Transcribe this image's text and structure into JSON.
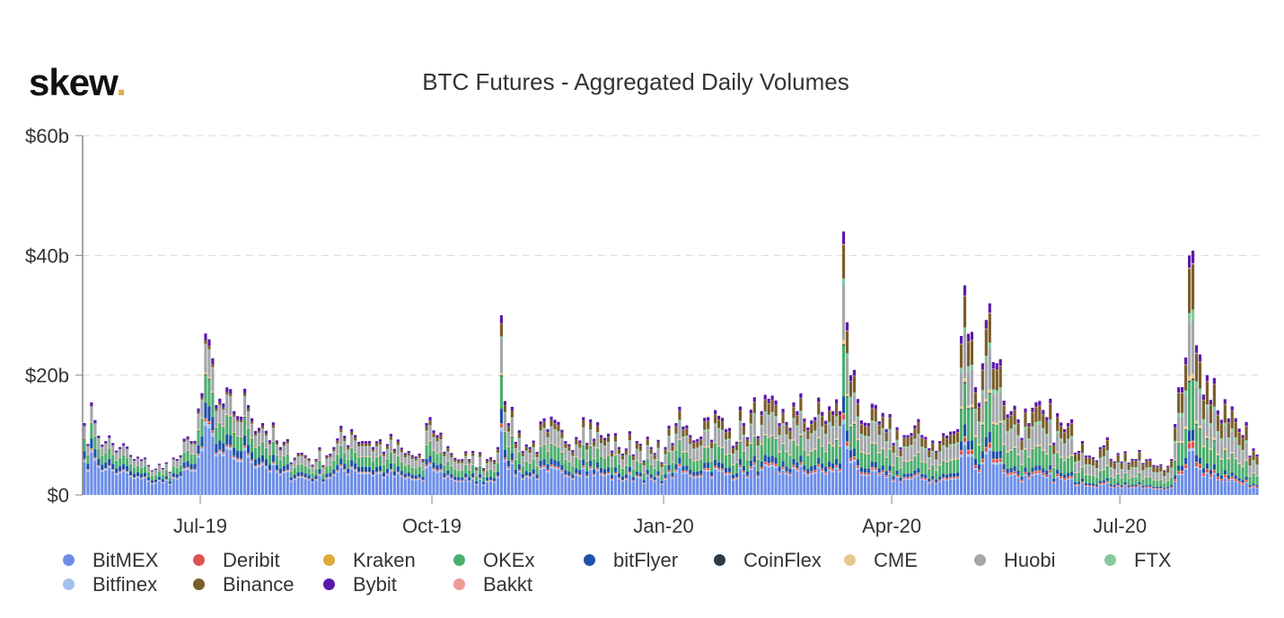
{
  "logo": {
    "text": "skew",
    "dot": "."
  },
  "chart_data": {
    "type": "bar",
    "stacked": true,
    "title": "BTC Futures - Aggregated Daily Volumes",
    "xlabel": "",
    "ylabel": "",
    "ylim": [
      0,
      60
    ],
    "y_ticks": [
      {
        "value": 0,
        "label": "$0"
      },
      {
        "value": 20,
        "label": "$20b"
      },
      {
        "value": 40,
        "label": "$40b"
      },
      {
        "value": 60,
        "label": "$60b"
      }
    ],
    "x_ticks": [
      {
        "index": 33,
        "label": "Jul-19"
      },
      {
        "index": 98,
        "label": "Oct-19"
      },
      {
        "index": 163,
        "label": "Jan-20"
      },
      {
        "index": 227,
        "label": "Apr-20"
      },
      {
        "index": 291,
        "label": "Jul-20"
      }
    ],
    "legend_placement": "bottom",
    "total_days": 330,
    "totals_anchor_points": [
      [
        0,
        12
      ],
      [
        3,
        12.5
      ],
      [
        6,
        9
      ],
      [
        10,
        8
      ],
      [
        14,
        6
      ],
      [
        18,
        5
      ],
      [
        22,
        4.5
      ],
      [
        26,
        6
      ],
      [
        30,
        9
      ],
      [
        33,
        17
      ],
      [
        35,
        26
      ],
      [
        37,
        15
      ],
      [
        42,
        14
      ],
      [
        46,
        15
      ],
      [
        50,
        12
      ],
      [
        55,
        8
      ],
      [
        60,
        7
      ],
      [
        65,
        6
      ],
      [
        70,
        8
      ],
      [
        75,
        11
      ],
      [
        80,
        9
      ],
      [
        85,
        8.5
      ],
      [
        90,
        7
      ],
      [
        95,
        6
      ],
      [
        97,
        13
      ],
      [
        99,
        10
      ],
      [
        103,
        7
      ],
      [
        108,
        6
      ],
      [
        113,
        6
      ],
      [
        116,
        8
      ],
      [
        117,
        30
      ],
      [
        119,
        12
      ],
      [
        125,
        8
      ],
      [
        130,
        11
      ],
      [
        135,
        9
      ],
      [
        140,
        13
      ],
      [
        145,
        10
      ],
      [
        150,
        8
      ],
      [
        155,
        9
      ],
      [
        160,
        7
      ],
      [
        163,
        8
      ],
      [
        166,
        12
      ],
      [
        170,
        10
      ],
      [
        175,
        13
      ],
      [
        180,
        11
      ],
      [
        185,
        12
      ],
      [
        190,
        14
      ],
      [
        195,
        12
      ],
      [
        200,
        14
      ],
      [
        205,
        13
      ],
      [
        210,
        14
      ],
      [
        212,
        14
      ],
      [
        213,
        44
      ],
      [
        215,
        20
      ],
      [
        220,
        12
      ],
      [
        225,
        11
      ],
      [
        230,
        10
      ],
      [
        235,
        10
      ],
      [
        240,
        9
      ],
      [
        245,
        11
      ],
      [
        247,
        35
      ],
      [
        250,
        18
      ],
      [
        254,
        32
      ],
      [
        256,
        22
      ],
      [
        260,
        14
      ],
      [
        265,
        12
      ],
      [
        270,
        13
      ],
      [
        275,
        11
      ],
      [
        280,
        9
      ],
      [
        285,
        8
      ],
      [
        290,
        7
      ],
      [
        295,
        6
      ],
      [
        300,
        5
      ],
      [
        305,
        6
      ],
      [
        308,
        18
      ],
      [
        310,
        40
      ],
      [
        312,
        25
      ],
      [
        315,
        20
      ],
      [
        320,
        16
      ],
      [
        325,
        10
      ],
      [
        330,
        7
      ]
    ],
    "series": [
      {
        "name": "BitMEX",
        "color": "#6c8ee8",
        "share_early": 0.44,
        "share_late": 0.16
      },
      {
        "name": "Deribit",
        "color": "#e05252",
        "share_early": 0.01,
        "share_late": 0.025
      },
      {
        "name": "Kraken",
        "color": "#e0a93a",
        "share_early": 0.005,
        "share_late": 0.005
      },
      {
        "name": "OKEx",
        "color": "#4caf6e",
        "share_early": 0.16,
        "share_late": 0.2
      },
      {
        "name": "bitFlyer",
        "color": "#1f4fa8",
        "share_early": 0.1,
        "share_late": 0.04
      },
      {
        "name": "CoinFlex",
        "color": "#2f3a44",
        "share_early": 0.005,
        "share_late": 0.005
      },
      {
        "name": "CME",
        "color": "#e7c98e",
        "share_early": 0.01,
        "share_late": 0.02
      },
      {
        "name": "Huobi",
        "color": "#a3a7ab",
        "share_early": 0.16,
        "share_late": 0.22
      },
      {
        "name": "FTX",
        "color": "#86c9a0",
        "share_early": 0.0,
        "share_late": 0.04
      },
      {
        "name": "Bitfinex",
        "color": "#a7c0ee",
        "share_early": 0.03,
        "share_late": 0.01
      },
      {
        "name": "Binance",
        "color": "#7a5e2a",
        "share_early": 0.0,
        "share_late": 0.19
      },
      {
        "name": "Bybit",
        "color": "#5b1aa8",
        "share_early": 0.04,
        "share_late": 0.05
      },
      {
        "name": "Bakkt",
        "color": "#ec9b95",
        "share_early": 0.0,
        "share_late": 0.005
      }
    ]
  },
  "legend": {
    "rows": [
      [
        "BitMEX",
        "Deribit",
        "Kraken",
        "OKEx",
        "bitFlyer",
        "CoinFlex",
        "CME",
        "Huobi",
        "FTX"
      ],
      [
        "Bitfinex",
        "Binance",
        "Bybit",
        "Bakkt"
      ]
    ]
  }
}
